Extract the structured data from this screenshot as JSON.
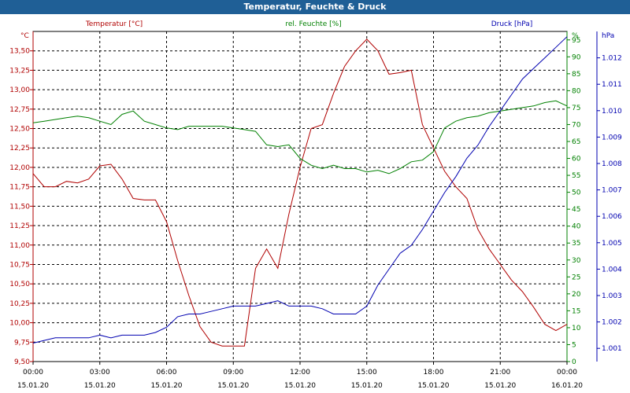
{
  "window": {
    "title": "Temperatur, Feuchte & Druck"
  },
  "colors": {
    "titlebar": "#1f5f96",
    "temperature": "#b00000",
    "humidity": "#008000",
    "pressure": "#0000b0",
    "grid": "#000000"
  },
  "chart_data": {
    "type": "line",
    "title": "Temperatur, Feuchte & Druck",
    "grid": true,
    "x_ticks": [
      {
        "time": "00:00",
        "date": "15.01.20"
      },
      {
        "time": "03:00",
        "date": "15.01.20"
      },
      {
        "time": "06:00",
        "date": "15.01.20"
      },
      {
        "time": "09:00",
        "date": "15.01.20"
      },
      {
        "time": "12:00",
        "date": "15.01.20"
      },
      {
        "time": "15:00",
        "date": "15.01.20"
      },
      {
        "time": "18:00",
        "date": "15.01.20"
      },
      {
        "time": "21:00",
        "date": "15.01.20"
      },
      {
        "time": "00:00",
        "date": "16.01.20"
      }
    ],
    "axes": {
      "temperature": {
        "label": "Temperatur [°C]",
        "unit": "°C",
        "min": 9.5,
        "max": 13.75,
        "ticks": [
          "9,50",
          "9,75",
          "10,00",
          "10,25",
          "10,50",
          "10,75",
          "11,00",
          "11,25",
          "11,50",
          "11,75",
          "12,00",
          "12,25",
          "12,50",
          "12,75",
          "13,00",
          "13,25",
          "13,50"
        ]
      },
      "humidity": {
        "label": "rel. Feuchte [%]",
        "unit": "%",
        "min": 0,
        "max": 97.5,
        "ticks": [
          "0",
          "5",
          "10",
          "15",
          "20",
          "25",
          "30",
          "35",
          "40",
          "45",
          "50",
          "55",
          "60",
          "65",
          "70",
          "75",
          "80",
          "85",
          "90",
          "95"
        ]
      },
      "pressure": {
        "label": "Druck [hPa]",
        "unit": "hPa",
        "min": 1000.5,
        "max": 1013.0,
        "ticks": [
          "1.001",
          "1.002",
          "1.003",
          "1.004",
          "1.005",
          "1.006",
          "1.007",
          "1.008",
          "1.009",
          "1.010",
          "1.011",
          "1.012"
        ]
      }
    },
    "series": [
      {
        "name": "Temperatur [°C]",
        "axis": "temperature",
        "color": "#b00000",
        "x_hours": [
          0,
          0.5,
          1,
          1.5,
          2,
          2.5,
          3,
          3.5,
          4,
          4.5,
          5,
          5.5,
          6,
          6.5,
          7,
          7.5,
          8,
          8.5,
          9,
          9.5,
          10,
          10.5,
          11,
          11.5,
          12,
          12.5,
          13,
          13.5,
          14,
          14.5,
          15,
          15.5,
          16,
          16.5,
          17,
          17.5,
          18,
          18.5,
          19,
          19.5,
          20,
          20.5,
          21,
          21.5,
          22,
          22.5,
          23,
          23.5,
          24
        ],
        "values": [
          11.92,
          11.75,
          11.75,
          11.82,
          11.8,
          11.85,
          12.02,
          12.04,
          11.85,
          11.6,
          11.58,
          11.58,
          11.3,
          10.8,
          10.35,
          9.95,
          9.75,
          9.7,
          9.7,
          9.7,
          10.7,
          10.95,
          10.7,
          11.4,
          12.0,
          12.5,
          12.55,
          12.95,
          13.3,
          13.5,
          13.65,
          13.5,
          13.2,
          13.22,
          13.25,
          12.55,
          12.25,
          11.95,
          11.75,
          11.6,
          11.2,
          10.95,
          10.75,
          10.55,
          10.4,
          10.2,
          9.98,
          9.9,
          9.98
        ]
      },
      {
        "name": "rel. Feuchte [%]",
        "axis": "humidity",
        "color": "#008000",
        "x_hours": [
          0,
          0.5,
          1,
          1.5,
          2,
          2.5,
          3,
          3.5,
          4,
          4.5,
          5,
          5.5,
          6,
          6.5,
          7,
          7.5,
          8,
          8.5,
          9,
          9.5,
          10,
          10.5,
          11,
          11.5,
          12,
          12.5,
          13,
          13.5,
          14,
          14.5,
          15,
          15.5,
          16,
          16.5,
          17,
          17.5,
          18,
          18.5,
          19,
          19.5,
          20,
          20.5,
          21,
          21.5,
          22,
          22.5,
          23,
          23.5,
          24
        ],
        "values": [
          70.5,
          71,
          71.5,
          72,
          72.5,
          72,
          71,
          70,
          73,
          74,
          71,
          70,
          69,
          68.5,
          69.5,
          69.5,
          69.5,
          69.5,
          69,
          68.5,
          68,
          64,
          63.5,
          64,
          60,
          58,
          57,
          58,
          57,
          57,
          56,
          56.5,
          55.5,
          57,
          59,
          59.5,
          62,
          69,
          71,
          72,
          72.5,
          73.5,
          74,
          74.5,
          75,
          75.5,
          76.5,
          77,
          75.5
        ]
      },
      {
        "name": "Druck [hPa]",
        "axis": "pressure",
        "color": "#0000b0",
        "x_hours": [
          0,
          0.5,
          1,
          1.5,
          2,
          2.5,
          3,
          3.5,
          4,
          4.5,
          5,
          5.5,
          6,
          6.5,
          7,
          7.5,
          8,
          8.5,
          9,
          9.5,
          10,
          10.5,
          11,
          11.5,
          12,
          12.5,
          13,
          13.5,
          14,
          14.5,
          15,
          15.5,
          16,
          16.5,
          17,
          17.5,
          18,
          18.5,
          19,
          19.5,
          20,
          20.5,
          21,
          21.5,
          22,
          22.5,
          23,
          23.5,
          24
        ],
        "values": [
          1001.2,
          1001.3,
          1001.4,
          1001.4,
          1001.4,
          1001.4,
          1001.5,
          1001.4,
          1001.5,
          1001.5,
          1001.5,
          1001.6,
          1001.8,
          1002.2,
          1002.3,
          1002.3,
          1002.4,
          1002.5,
          1002.6,
          1002.6,
          1002.6,
          1002.7,
          1002.8,
          1002.6,
          1002.6,
          1002.6,
          1002.5,
          1002.3,
          1002.3,
          1002.3,
          1002.6,
          1003.4,
          1004.0,
          1004.6,
          1004.9,
          1005.5,
          1006.2,
          1006.9,
          1007.5,
          1008.2,
          1008.7,
          1009.4,
          1010.0,
          1010.6,
          1011.2,
          1011.6,
          1012.0,
          1012.4,
          1012.8
        ]
      }
    ]
  }
}
